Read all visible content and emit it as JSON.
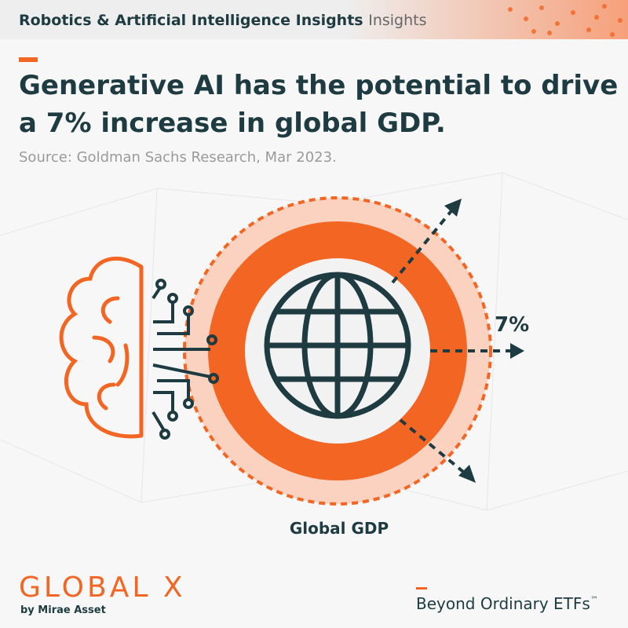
{
  "header": {
    "title": "Robotics & Artificial Intelligence Insights",
    "suffix": "Insights"
  },
  "headline": {
    "line1": "Generative AI has the potential to drive",
    "line2": "a 7% increase in global GDP."
  },
  "source": "Source: Goldman Sachs Research, Mar 2023.",
  "graphic": {
    "increase_label": "7%",
    "circle_label": "Global GDP"
  },
  "footer": {
    "logo": "GLOBAL X",
    "byline": "by Mirae Asset",
    "tagline": "Beyond Ordinary ETFs",
    "trademark": "™"
  }
}
